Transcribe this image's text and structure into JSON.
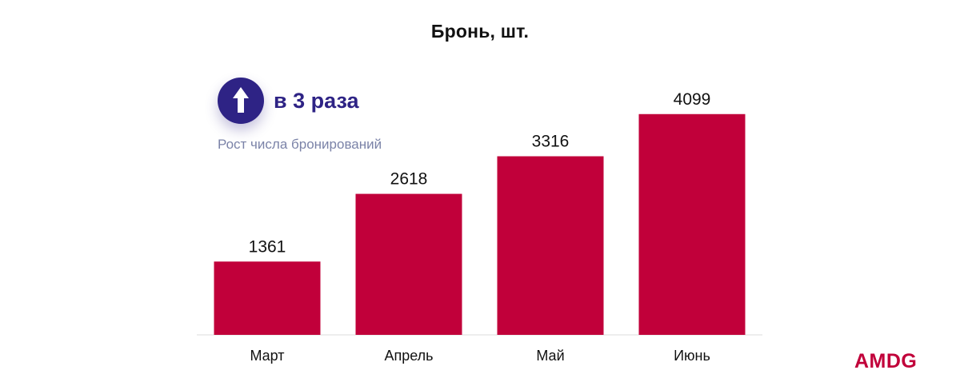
{
  "chart_data": {
    "type": "bar",
    "title": "Бронь, шт.",
    "categories": [
      "Март",
      "Апрель",
      "Май",
      "Июнь"
    ],
    "values": [
      1361,
      2618,
      3316,
      4099
    ],
    "data_labels": [
      "1361",
      "2618",
      "3316",
      "4099"
    ],
    "xlabel": "",
    "ylabel": "",
    "ylim": [
      0,
      4600
    ],
    "grid": false,
    "bar_color": "#c1003a"
  },
  "callout": {
    "headline": "в 3 раза",
    "subtitle": "Рост числа бронирований",
    "icon": "arrow-up-icon",
    "color": "#2e2385"
  },
  "brand": {
    "logo_text": "AMDG",
    "color": "#c1003a"
  }
}
